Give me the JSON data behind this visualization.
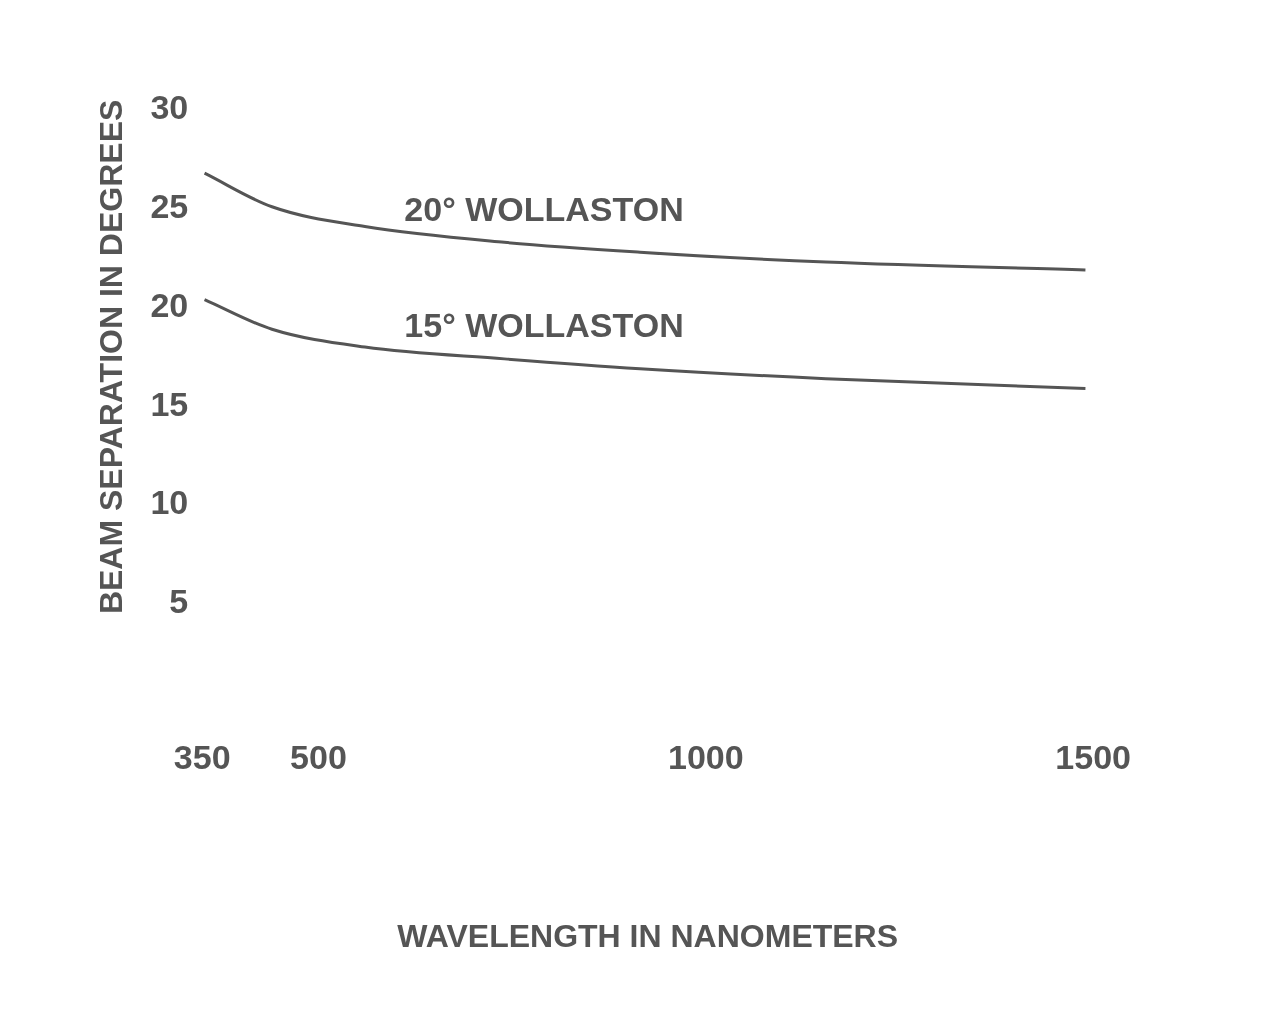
{
  "chart_data": {
    "type": "line",
    "xlabel": "WAVELENGTH IN NANOMETERS",
    "ylabel": "BEAM SEPARATION IN DEGREES",
    "xlim": [
      350,
      1500
    ],
    "xticks": [
      350,
      500,
      1000,
      1500
    ],
    "ylim": [
      5,
      30
    ],
    "yticks": [
      5,
      10,
      15,
      20,
      25,
      30
    ],
    "grid": false,
    "legend": false,
    "marker": "none",
    "line_style": "solid",
    "series": [
      {
        "name": "20° WOLLASTON",
        "color": "#555555",
        "x": [
          353,
          440,
          560,
          740,
          915,
          1155,
          1490
        ],
        "values": [
          26.8,
          25.1,
          24.1,
          23.3,
          22.8,
          22.3,
          21.9
        ]
      },
      {
        "name": "15° WOLLASTON",
        "color": "#555555",
        "x": [
          353,
          440,
          560,
          740,
          915,
          1155,
          1490
        ],
        "values": [
          20.4,
          18.9,
          18.0,
          17.4,
          16.9,
          16.4,
          15.9
        ]
      }
    ]
  }
}
